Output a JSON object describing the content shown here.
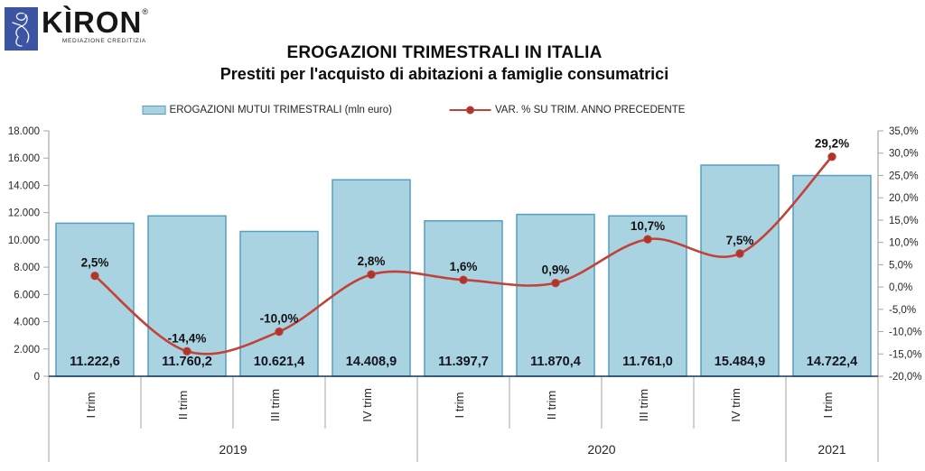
{
  "logo": {
    "brand": "KÌRON",
    "registered": "®",
    "subtitle": "MEDIAZIONE CREDITIZIA",
    "mark_color": "#3b55a3"
  },
  "chart_data": {
    "type": "combo-bar-line",
    "title": "EROGAZIONI TRIMESTRALI IN ITALIA",
    "subtitle": "Prestiti per l'acquisto di abitazioni a famiglie consumatrici",
    "legend_position": "top",
    "grid": false,
    "categories": [
      "I trim",
      "II trim",
      "III trim",
      "IV trim",
      "I trim",
      "II trim",
      "III trim",
      "IV trim",
      "I trim"
    ],
    "year_groups": [
      {
        "label": "2019",
        "count": 4
      },
      {
        "label": "2020",
        "count": 4
      },
      {
        "label": "2021",
        "count": 1
      }
    ],
    "series": [
      {
        "name": "EROGAZIONI MUTUI TRIMESTRALI (mln euro)",
        "type": "bar",
        "axis": "left",
        "values": [
          11222.6,
          11760.2,
          10621.4,
          14408.9,
          11397.7,
          11870.4,
          11761.0,
          15484.9,
          14722.4
        ],
        "labels": [
          "11.222,6",
          "11.760,2",
          "10.621,4",
          "14.408,9",
          "11.397,7",
          "11.870,4",
          "11.761,0",
          "15.484,9",
          "14.722,4"
        ]
      },
      {
        "name": "VAR. % SU TRIM. ANNO PRECEDENTE",
        "type": "line",
        "axis": "right",
        "values": [
          2.5,
          -14.4,
          -10.0,
          2.8,
          1.6,
          0.9,
          10.7,
          7.5,
          29.2
        ],
        "labels": [
          "2,5%",
          "-14,4%",
          "-10,0%",
          "2,8%",
          "1,6%",
          "0,9%",
          "10,7%",
          "7,5%",
          "29,2%"
        ]
      }
    ],
    "axis_left": {
      "min": 0,
      "max": 18000,
      "step": 2000,
      "labels": [
        "0",
        "2.000",
        "4.000",
        "6.000",
        "8.000",
        "10.000",
        "12.000",
        "14.000",
        "16.000",
        "18.000"
      ]
    },
    "axis_right": {
      "min": -20,
      "max": 35,
      "step": 5,
      "labels": [
        "-20,0%",
        "-15,0%",
        "-10,0%",
        "-5,0%",
        "0,0%",
        "5,0%",
        "10,0%",
        "15,0%",
        "20,0%",
        "25,0%",
        "30,0%",
        "35,0%"
      ]
    },
    "colors": {
      "bar_fill": "#aad3e2",
      "bar_border": "#54a0c0",
      "line": "#c2423a",
      "marker": "#ad352c",
      "axis": "#a6a6a6",
      "baseline": "#16365c",
      "text": "#262626"
    }
  }
}
